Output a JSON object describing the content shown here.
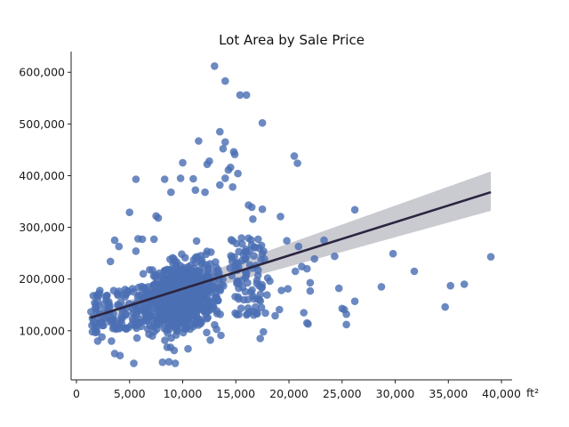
{
  "chart_data": {
    "type": "scatter",
    "title": "Lot Area by Sale Price",
    "xlabel": "",
    "ylabel": "",
    "x_unit": "ft²",
    "xlim": [
      -500,
      41000
    ],
    "ylim": [
      5000,
      640000
    ],
    "x_ticks": [
      0,
      5000,
      10000,
      15000,
      20000,
      25000,
      30000,
      35000,
      40000
    ],
    "x_tick_labels": [
      "0",
      "5,000",
      "10,000",
      "15,000",
      "20,000",
      "25,000",
      "30,000",
      "35,000",
      "40,000"
    ],
    "y_ticks": [
      100000,
      200000,
      300000,
      400000,
      500000,
      600000
    ],
    "y_tick_labels": [
      "100,000",
      "200,000",
      "300,000",
      "400,000",
      "500,000",
      "600,000"
    ],
    "grid": false,
    "point_color": "#4c6fb3",
    "line_color": "#2b2540",
    "band_color": "#b8b8c2",
    "regression": {
      "x": [
        1300,
        39000
      ],
      "y": [
        125000,
        368000
      ],
      "ci_upper": [
        132000,
        408000
      ],
      "ci_lower": [
        118000,
        332000
      ]
    },
    "points": [
      [
        13000,
        612000
      ],
      [
        14000,
        583000
      ],
      [
        15400,
        556000
      ],
      [
        16000,
        556000
      ],
      [
        17500,
        502000
      ],
      [
        13500,
        485000
      ],
      [
        11500,
        467000
      ],
      [
        14000,
        465000
      ],
      [
        13800,
        452000
      ],
      [
        14800,
        446000
      ],
      [
        14900,
        441000
      ],
      [
        20500,
        438000
      ],
      [
        20800,
        424000
      ],
      [
        10000,
        425000
      ],
      [
        12500,
        428000
      ],
      [
        12300,
        422000
      ],
      [
        14500,
        416000
      ],
      [
        14300,
        411000
      ],
      [
        15200,
        404000
      ],
      [
        5600,
        393000
      ],
      [
        8300,
        393000
      ],
      [
        9800,
        395000
      ],
      [
        11000,
        394000
      ],
      [
        14000,
        395000
      ],
      [
        13500,
        382000
      ],
      [
        14700,
        378000
      ],
      [
        12100,
        368000
      ],
      [
        11200,
        372000
      ],
      [
        8900,
        368000
      ],
      [
        16200,
        343000
      ],
      [
        16500,
        339000
      ],
      [
        17500,
        335000
      ],
      [
        26200,
        334000
      ],
      [
        5000,
        329000
      ],
      [
        7500,
        322000
      ],
      [
        7700,
        318000
      ],
      [
        16600,
        316000
      ],
      [
        19200,
        321000
      ],
      [
        23300,
        275000
      ],
      [
        24300,
        244000
      ],
      [
        29800,
        249000
      ],
      [
        31800,
        215000
      ],
      [
        39000,
        243000
      ],
      [
        35200,
        187000
      ],
      [
        36500,
        190000
      ],
      [
        28700,
        185000
      ],
      [
        24700,
        182000
      ],
      [
        25000,
        143000
      ],
      [
        25200,
        141000
      ],
      [
        25400,
        132000
      ],
      [
        26200,
        157000
      ],
      [
        34700,
        146000
      ],
      [
        25400,
        112000
      ],
      [
        21800,
        113000
      ],
      [
        21700,
        115000
      ],
      [
        21400,
        135000
      ],
      [
        22000,
        177000
      ],
      [
        22000,
        193000
      ],
      [
        21700,
        220000
      ],
      [
        21200,
        224000
      ],
      [
        22400,
        239000
      ],
      [
        20900,
        263000
      ],
      [
        19800,
        274000
      ],
      [
        20600,
        215000
      ],
      [
        19300,
        178000
      ],
      [
        19900,
        181000
      ],
      [
        18200,
        196000
      ],
      [
        18000,
        202000
      ],
      [
        19100,
        141000
      ],
      [
        18700,
        129000
      ],
      [
        17300,
        85000
      ],
      [
        17600,
        98000
      ],
      [
        17000,
        135000
      ],
      [
        16700,
        137000
      ],
      [
        3600,
        56000
      ],
      [
        4100,
        52000
      ],
      [
        3300,
        80000
      ],
      [
        3600,
        275000
      ],
      [
        4000,
        263000
      ],
      [
        3200,
        234000
      ],
      [
        5600,
        254000
      ],
      [
        5800,
        278000
      ],
      [
        6200,
        277000
      ],
      [
        7300,
        277000
      ],
      [
        5400,
        37000
      ],
      [
        9300,
        37000
      ],
      [
        8100,
        39000
      ],
      [
        8700,
        40000
      ],
      [
        10500,
        65000
      ],
      [
        9200,
        62000
      ],
      [
        5700,
        86000
      ],
      [
        12600,
        82000
      ],
      [
        13600,
        91000
      ],
      [
        1500,
        124000
      ],
      [
        1800,
        102000
      ],
      [
        2000,
        80000
      ],
      [
        2600,
        152000
      ],
      [
        2200,
        178000
      ],
      [
        2000,
        170000
      ],
      [
        1500,
        98000
      ],
      [
        2400,
        88000
      ],
      [
        2800,
        165000
      ]
    ]
  }
}
